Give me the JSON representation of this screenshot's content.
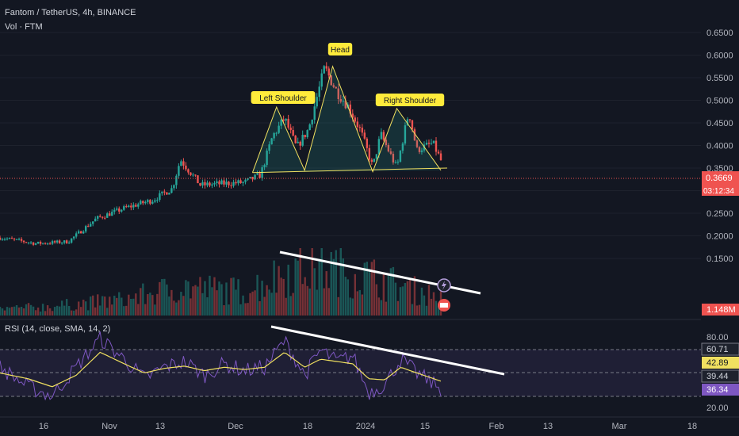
{
  "header": {
    "symbol_line": "Fantom / TetherUS, 4h, BINANCE",
    "volume_line": "Vol · FTM"
  },
  "rsi_header": "RSI (14, close, SMA, 14, 2)",
  "annotations": {
    "left_shoulder": "Left Shoulder",
    "head": "Head",
    "right_shoulder": "Right Shoulder"
  },
  "price_badge": {
    "value": "0.3669",
    "countdown": "03:12:34"
  },
  "volume_badge": "1.148M",
  "rsi_badges": {
    "upper_band": "60.71",
    "sma": "42.89",
    "basis": "39.44",
    "rsi": "36.34"
  },
  "colors": {
    "background": "#131722",
    "up": "#26a69a",
    "down": "#ef5350",
    "pattern_line": "#f0e060",
    "label_bg": "#ffeb3b",
    "rsi_line": "#7e57c2",
    "rsi_sma": "#f0e060",
    "trendline": "#ffffff"
  },
  "chart_data": [
    {
      "type": "candlestick",
      "title": "Fantom / TetherUS, 4h, BINANCE",
      "x": [
        "2023-10-01",
        "2023-10-10",
        "2023-10-18",
        "2023-10-25",
        "2023-11-01",
        "2023-11-08",
        "2023-11-13",
        "2023-11-15",
        "2023-11-20",
        "2023-11-26",
        "2023-12-01",
        "2023-12-05",
        "2023-12-08",
        "2023-12-11",
        "2023-12-14",
        "2023-12-17",
        "2023-12-21",
        "2023-12-24",
        "2023-12-27",
        "2023-12-30",
        "2024-01-02",
        "2024-01-04",
        "2024-01-08",
        "2024-01-11",
        "2024-01-13",
        "2024-01-17",
        "2024-01-19"
      ],
      "y": [
        0.196,
        0.183,
        0.187,
        0.238,
        0.261,
        0.279,
        0.305,
        0.369,
        0.312,
        0.316,
        0.318,
        0.335,
        0.42,
        0.46,
        0.395,
        0.437,
        0.572,
        0.52,
        0.485,
        0.432,
        0.352,
        0.425,
        0.35,
        0.475,
        0.39,
        0.405,
        0.367
      ],
      "y_axis_ticks": [
        "0.6500",
        "0.6000",
        "0.5500",
        "0.5000",
        "0.4500",
        "0.4000",
        "0.3500",
        "0.3000",
        "0.2500",
        "0.2000",
        "0.1500"
      ],
      "x_axis_ticks": [
        "16",
        "Nov",
        "13",
        "Dec",
        "18",
        "2024",
        "15",
        "Feb",
        "13",
        "Mar",
        "18"
      ],
      "last_price": 0.3669,
      "pattern": {
        "name": "head-and-shoulders",
        "points": [
          {
            "x": "2023-12-03",
            "y": 0.34
          },
          {
            "x": "2023-12-09",
            "y": 0.485
          },
          {
            "x": "2023-12-16",
            "y": 0.345
          },
          {
            "x": "2023-12-23",
            "y": 0.575
          },
          {
            "x": "2024-01-02",
            "y": 0.342
          },
          {
            "x": "2024-01-08",
            "y": 0.482
          },
          {
            "x": "2024-01-19",
            "y": 0.345
          }
        ],
        "neckline": [
          {
            "x": "2023-12-03",
            "y": 0.34
          },
          {
            "x": "2024-01-19",
            "y": 0.35
          }
        ]
      },
      "series": [
        {
          "values": [
            0.196,
            0.183,
            0.187,
            0.238,
            0.261,
            0.279,
            0.305,
            0.369,
            0.312,
            0.316,
            0.318,
            0.335,
            0.42,
            0.46,
            0.395,
            0.437,
            0.572,
            0.52,
            0.485,
            0.432,
            0.352,
            0.425,
            0.35,
            0.475,
            0.39,
            0.405,
            0.367
          ]
        }
      ]
    },
    {
      "type": "bar",
      "title": "Vol · FTM",
      "x": [
        "2023-10-01",
        "2023-10-15",
        "2023-11-01",
        "2023-11-15",
        "2023-12-01",
        "2023-12-12",
        "2023-12-22",
        "2024-01-02",
        "2024-01-12",
        "2024-01-19"
      ],
      "values": [
        0.4,
        0.6,
        1.0,
        1.8,
        1.5,
        2.8,
        3.0,
        2.4,
        1.6,
        1.148
      ],
      "last_value_label": "1.148M",
      "trendline": {
        "from": {
          "x": "2023-12-10"
        },
        "to": {
          "x": "2024-01-28"
        },
        "direction": "descending"
      }
    },
    {
      "type": "line",
      "title": "RSI (14, close, SMA, 14, 2)",
      "x": [
        "2023-10-01",
        "2023-10-08",
        "2023-10-14",
        "2023-10-20",
        "2023-10-26",
        "2023-11-01",
        "2023-11-06",
        "2023-11-11",
        "2023-11-16",
        "2023-11-21",
        "2023-11-26",
        "2023-12-01",
        "2023-12-06",
        "2023-12-11",
        "2023-12-16",
        "2023-12-20",
        "2023-12-24",
        "2023-12-28",
        "2024-01-01",
        "2024-01-05",
        "2024-01-09",
        "2024-01-13",
        "2024-01-19"
      ],
      "series": [
        {
          "name": "RSI",
          "values": [
            55,
            38,
            30,
            55,
            80,
            62,
            45,
            55,
            60,
            48,
            58,
            52,
            55,
            78,
            48,
            70,
            60,
            65,
            33,
            40,
            62,
            50,
            36.34
          ]
        },
        {
          "name": "SMA",
          "values": [
            50,
            45,
            38,
            48,
            68,
            58,
            50,
            54,
            56,
            52,
            55,
            53,
            55,
            68,
            55,
            62,
            60,
            58,
            45,
            44,
            55,
            50,
            42.89
          ]
        }
      ],
      "y_axis_ticks": [
        "80.00",
        "20.00"
      ],
      "bands": {
        "upper": 60.71,
        "basis": 39.44,
        "level_high": 70,
        "level_low": 30
      },
      "trendline": {
        "from": {
          "x": "2023-12-08"
        },
        "to": {
          "x": "2024-02-01"
        },
        "direction": "descending"
      }
    }
  ]
}
